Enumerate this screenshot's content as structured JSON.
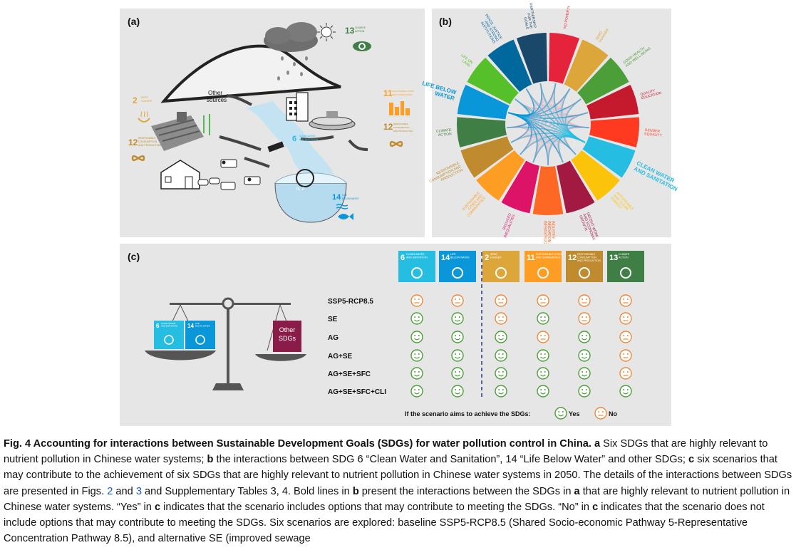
{
  "panel_a": {
    "label": "(a)",
    "other_sources": [
      "Other",
      "sources"
    ],
    "sdg2": {
      "num": "2",
      "name": [
        "ZERO",
        "HUNGER"
      ]
    },
    "sdg12": {
      "num": "12",
      "name": [
        "RESPONSIBLE",
        "CONSUMPTION",
        "AND PRODUCTION"
      ]
    },
    "sdg13": {
      "num": "13",
      "name": [
        "CLIMATE",
        "ACTION"
      ]
    },
    "sdg11": {
      "num": "11",
      "name": [
        "SUSTAINABLE CITIES",
        "AND COMMUNITIES"
      ]
    },
    "sdg12b": {
      "num": "12",
      "name": [
        "RESPONSIBLE",
        "CONSUMPTION",
        "AND PRODUCTION"
      ]
    },
    "sdg6": {
      "num": "6",
      "name": [
        "CLEAN WATER",
        "AND SANITATION"
      ]
    },
    "sdg14": {
      "num": "14",
      "name": [
        "LIFE",
        "BELOW WATER"
      ]
    },
    "np_label": "N, P"
  },
  "panel_b": {
    "label": "(b)",
    "segments": [
      {
        "lines": [
          "NO POVERTY"
        ],
        "color": "#e5243b"
      },
      {
        "lines": [
          "ZERO",
          "HUNGER"
        ],
        "color": "#dda63a"
      },
      {
        "lines": [
          "GOOD HEALTH",
          "AND WELL-BEING"
        ],
        "color": "#4c9f38"
      },
      {
        "lines": [
          "QUALITY",
          "EDUCATION"
        ],
        "color": "#c5192d"
      },
      {
        "lines": [
          "GENDER",
          "EQUALITY"
        ],
        "color": "#ff3a21"
      },
      {
        "lines": [
          "CLEAN WATER",
          "AND SANITATION"
        ],
        "color": "#26bde2"
      },
      {
        "lines": [
          "AFFORDABLE",
          "AND CLEAN",
          "ENERGY"
        ],
        "color": "#fcc30b"
      },
      {
        "lines": [
          "DECENT WORK",
          "AND ECONOMIC",
          "GROWTH"
        ],
        "color": "#a21942"
      },
      {
        "lines": [
          "INDUSTRY,",
          "INNOVATION AND",
          "INFRASTRUCTURE"
        ],
        "color": "#fd6925"
      },
      {
        "lines": [
          "REDUCED",
          "INEQUALITIES"
        ],
        "color": "#dd1367"
      },
      {
        "lines": [
          "SUSTAINABLE",
          "CITIES AND",
          "COMMUNITIES"
        ],
        "color": "#fd9d24"
      },
      {
        "lines": [
          "RESPONSIBLE",
          "CONSUMPTION AND",
          "PRODUCTION"
        ],
        "color": "#bf8b2e"
      },
      {
        "lines": [
          "CLIMATE",
          "ACTION"
        ],
        "color": "#3f7e44"
      },
      {
        "lines": [
          "LIFE BELOW",
          "WATER"
        ],
        "color": "#0a97d9"
      },
      {
        "lines": [
          "LIFE ON",
          "LAND"
        ],
        "color": "#56c02b"
      },
      {
        "lines": [
          "PEACE, JUSTICE",
          "AND STRONG",
          "INSTITUTIONS"
        ],
        "color": "#00689d"
      },
      {
        "lines": [
          "PARTNERSHIP",
          "FOR THE",
          "GOALS"
        ],
        "color": "#19486a"
      }
    ]
  },
  "panel_c": {
    "label": "(c)",
    "columns": [
      {
        "num": "6",
        "name": [
          "CLEAN WATER",
          "AND SANITATION"
        ],
        "color": "#26bde2"
      },
      {
        "num": "14",
        "name": [
          "LIFE",
          "BELOW WATER"
        ],
        "color": "#0a97d9"
      },
      {
        "num": "2",
        "name": [
          "ZERO",
          "HUNGER"
        ],
        "color": "#dda63a"
      },
      {
        "num": "11",
        "name": [
          "SUSTAINABLE CITIES",
          "AND COMMUNITIES"
        ],
        "color": "#fd9d24"
      },
      {
        "num": "12",
        "name": [
          "RESPONSIBLE",
          "CONSUMPTION",
          "AND PRODUCTION"
        ],
        "color": "#bf8b2e"
      },
      {
        "num": "13",
        "name": [
          "CLIMATE",
          "ACTION"
        ],
        "color": "#3f7e44"
      }
    ],
    "scenarios": [
      {
        "name": "SSP5-RCP8.5",
        "values": [
          "no",
          "no",
          "no",
          "no",
          "no",
          "no"
        ]
      },
      {
        "name": "SE",
        "values": [
          "yes",
          "yes",
          "no",
          "yes",
          "no",
          "no"
        ]
      },
      {
        "name": "AG",
        "values": [
          "yes",
          "yes",
          "yes",
          "no",
          "yes",
          "no"
        ]
      },
      {
        "name": "AG+SE",
        "values": [
          "yes",
          "yes",
          "yes",
          "yes",
          "yes",
          "no"
        ]
      },
      {
        "name": "AG+SE+SFC",
        "values": [
          "yes",
          "yes",
          "yes",
          "yes",
          "yes",
          "no"
        ]
      },
      {
        "name": "AG+SE+SFC+CLI",
        "values": [
          "yes",
          "yes",
          "yes",
          "yes",
          "yes",
          "yes"
        ]
      }
    ],
    "scale_left": [
      {
        "num": "6",
        "name": [
          "CLEAN WATER",
          "AND SANITATION"
        ],
        "color": "#26bde2"
      },
      {
        "num": "14",
        "name": [
          "LIFE",
          "BELOW WATER"
        ],
        "color": "#0a97d9"
      }
    ],
    "scale_right": [
      "Other",
      "SDGs"
    ],
    "legend_prompt": "If the scenario aims to achieve the SDGs:",
    "legend_yes": "Yes",
    "legend_no": "No",
    "yes_color": "#4c9f38",
    "no_color": "#f0873a"
  },
  "caption": {
    "fig": "Fig. 4 Accounting for interactions between Sustainable Development Goals (SDGs) for water pollution control in China.",
    "a_bold": "a",
    "t1": "Six SDGs that are highly relevant to nutrient pollution in Chinese water systems;",
    "b_bold": "b",
    "t2": "the interactions between SDG 6 “Clean Water and Sanitation”, 14 “Life Below Water” and other SDGs;",
    "c_bold": "c",
    "t3": "six scenarios that may contribute to the achievement of six SDGs that are highly relevant to nutrient pollution in Chinese water systems in 2050. The details of the interactions between SDGs are presented in Figs.",
    "ref1": "2",
    "and": "and",
    "ref2": "3",
    "t4": "and Supplementary Tables 3, 4. Bold lines in",
    "b2": "b",
    "t5": "present the interactions between the SDGs in",
    "a2": "a",
    "t6": "that are highly relevant to nutrient pollution in Chinese water systems. “Yes” in",
    "c2": "c",
    "t7": "indicates that the scenario includes options that may contribute to meeting the SDGs. “No” in",
    "c3": "c",
    "t8": "indicates that the scenario does not include options that may contribute to meeting the SDGs. Six scenarios are explored: baseline SSP5-RCP8.5 (Shared Socio-economic Pathway 5-Representative Concentration Pathway 8.5), and alternative SE (improved sewage"
  }
}
